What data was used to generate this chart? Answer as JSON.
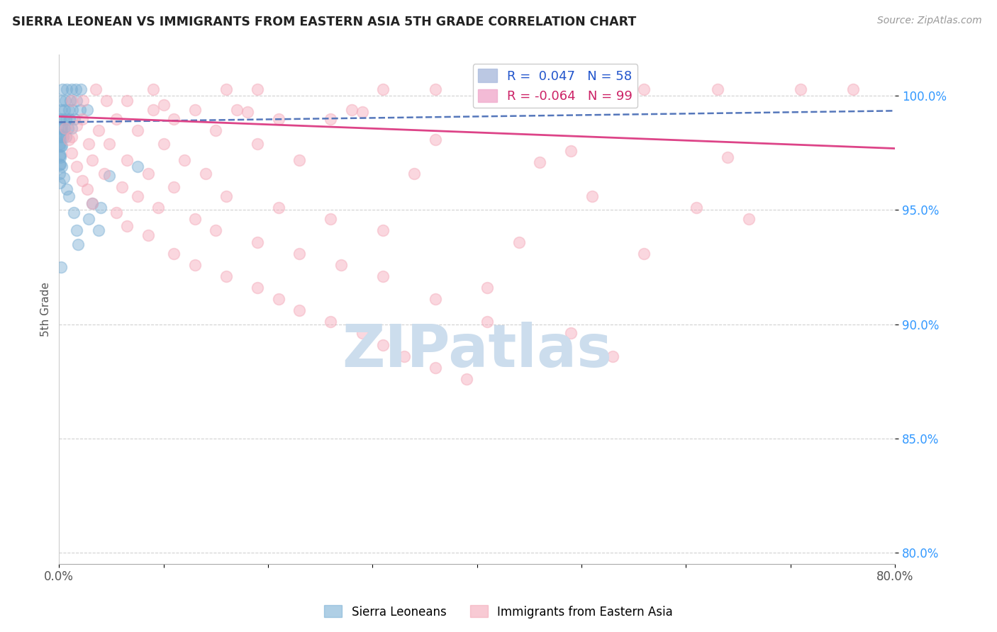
{
  "title": "SIERRA LEONEAN VS IMMIGRANTS FROM EASTERN ASIA 5TH GRADE CORRELATION CHART",
  "source": "Source: ZipAtlas.com",
  "ylabel": "5th Grade",
  "xlim": [
    0.0,
    80.0
  ],
  "ylim": [
    79.5,
    101.8
  ],
  "yticks": [
    80.0,
    85.0,
    90.0,
    95.0,
    100.0
  ],
  "ytick_labels": [
    "80.0%",
    "85.0%",
    "90.0%",
    "95.0%",
    "100.0%"
  ],
  "xticks": [
    0.0,
    10.0,
    20.0,
    30.0,
    40.0,
    50.0,
    60.0,
    70.0,
    80.0
  ],
  "xtick_labels": [
    "0.0%",
    "",
    "",
    "",
    "",
    "",
    "",
    "",
    "80.0%"
  ],
  "blue_R": 0.047,
  "blue_N": 58,
  "pink_R": -0.064,
  "pink_N": 99,
  "blue_color": "#7bafd4",
  "pink_color": "#f4a8b8",
  "trend_blue_color": "#5577bb",
  "trend_pink_color": "#dd4488",
  "watermark": "ZIPatlas",
  "watermark_color": "#ccdded",
  "blue_points": [
    [
      0.3,
      100.3
    ],
    [
      0.7,
      100.3
    ],
    [
      1.2,
      100.3
    ],
    [
      1.6,
      100.3
    ],
    [
      2.1,
      100.3
    ],
    [
      0.2,
      99.8
    ],
    [
      0.6,
      99.8
    ],
    [
      1.1,
      99.8
    ],
    [
      1.7,
      99.8
    ],
    [
      0.15,
      99.4
    ],
    [
      0.5,
      99.4
    ],
    [
      0.9,
      99.4
    ],
    [
      1.3,
      99.4
    ],
    [
      2.0,
      99.4
    ],
    [
      2.7,
      99.4
    ],
    [
      0.1,
      99.0
    ],
    [
      0.35,
      99.0
    ],
    [
      0.65,
      99.0
    ],
    [
      1.0,
      99.0
    ],
    [
      1.5,
      99.0
    ],
    [
      0.1,
      98.6
    ],
    [
      0.25,
      98.6
    ],
    [
      0.55,
      98.6
    ],
    [
      0.85,
      98.6
    ],
    [
      1.2,
      98.6
    ],
    [
      0.08,
      98.2
    ],
    [
      0.18,
      98.2
    ],
    [
      0.38,
      98.2
    ],
    [
      0.65,
      98.2
    ],
    [
      0.05,
      97.8
    ],
    [
      0.15,
      97.8
    ],
    [
      0.28,
      97.8
    ],
    [
      0.05,
      97.4
    ],
    [
      0.12,
      97.4
    ],
    [
      0.04,
      97.0
    ],
    [
      0.09,
      97.0
    ],
    [
      0.03,
      96.6
    ],
    [
      0.03,
      96.2
    ],
    [
      3.2,
      95.3
    ],
    [
      4.0,
      95.1
    ],
    [
      1.8,
      93.5
    ],
    [
      0.15,
      92.5
    ],
    [
      0.08,
      98.3
    ],
    [
      0.04,
      97.9
    ],
    [
      0.12,
      97.3
    ],
    [
      0.25,
      96.9
    ],
    [
      0.45,
      96.4
    ],
    [
      0.75,
      95.9
    ],
    [
      0.9,
      95.6
    ],
    [
      1.4,
      94.9
    ],
    [
      1.7,
      94.1
    ],
    [
      4.8,
      96.5
    ],
    [
      7.5,
      96.9
    ],
    [
      2.8,
      94.6
    ],
    [
      3.8,
      94.1
    ]
  ],
  "pink_points": [
    [
      3.5,
      100.3
    ],
    [
      9.0,
      100.3
    ],
    [
      16.0,
      100.3
    ],
    [
      19.0,
      100.3
    ],
    [
      31.0,
      100.3
    ],
    [
      36.0,
      100.3
    ],
    [
      43.0,
      100.3
    ],
    [
      51.0,
      100.3
    ],
    [
      56.0,
      100.3
    ],
    [
      63.0,
      100.3
    ],
    [
      71.0,
      100.3
    ],
    [
      76.0,
      100.3
    ],
    [
      1.2,
      99.8
    ],
    [
      2.3,
      99.8
    ],
    [
      4.5,
      99.8
    ],
    [
      6.5,
      99.8
    ],
    [
      9.0,
      99.4
    ],
    [
      13.0,
      99.4
    ],
    [
      17.0,
      99.4
    ],
    [
      28.0,
      99.4
    ],
    [
      2.2,
      99.0
    ],
    [
      5.5,
      99.0
    ],
    [
      11.0,
      99.0
    ],
    [
      21.0,
      99.0
    ],
    [
      26.0,
      99.0
    ],
    [
      1.7,
      98.7
    ],
    [
      3.8,
      98.5
    ],
    [
      7.5,
      98.5
    ],
    [
      15.0,
      98.5
    ],
    [
      1.2,
      98.2
    ],
    [
      2.8,
      97.9
    ],
    [
      4.8,
      97.9
    ],
    [
      10.0,
      97.9
    ],
    [
      19.0,
      97.9
    ],
    [
      1.2,
      97.5
    ],
    [
      3.2,
      97.2
    ],
    [
      6.5,
      97.2
    ],
    [
      12.0,
      97.2
    ],
    [
      1.7,
      96.9
    ],
    [
      4.3,
      96.6
    ],
    [
      8.5,
      96.6
    ],
    [
      14.0,
      96.6
    ],
    [
      2.2,
      96.3
    ],
    [
      6.0,
      96.0
    ],
    [
      11.0,
      96.0
    ],
    [
      2.7,
      95.9
    ],
    [
      7.5,
      95.6
    ],
    [
      16.0,
      95.6
    ],
    [
      3.2,
      95.3
    ],
    [
      9.5,
      95.1
    ],
    [
      21.0,
      95.1
    ],
    [
      5.5,
      94.9
    ],
    [
      13.0,
      94.6
    ],
    [
      26.0,
      94.6
    ],
    [
      6.5,
      94.3
    ],
    [
      15.0,
      94.1
    ],
    [
      31.0,
      94.1
    ],
    [
      8.5,
      93.9
    ],
    [
      19.0,
      93.6
    ],
    [
      11.0,
      93.1
    ],
    [
      23.0,
      93.1
    ],
    [
      13.0,
      92.6
    ],
    [
      27.0,
      92.6
    ],
    [
      16.0,
      92.1
    ],
    [
      31.0,
      92.1
    ],
    [
      19.0,
      91.6
    ],
    [
      21.0,
      91.1
    ],
    [
      36.0,
      91.1
    ],
    [
      23.0,
      90.6
    ],
    [
      26.0,
      90.1
    ],
    [
      41.0,
      90.1
    ],
    [
      29.0,
      89.6
    ],
    [
      31.0,
      89.1
    ],
    [
      33.0,
      88.6
    ],
    [
      36.0,
      88.1
    ],
    [
      39.0,
      87.6
    ],
    [
      0.6,
      98.6
    ],
    [
      0.9,
      98.1
    ],
    [
      44.0,
      93.6
    ],
    [
      49.0,
      89.6
    ],
    [
      53.0,
      88.6
    ],
    [
      41.0,
      91.6
    ],
    [
      61.0,
      95.1
    ],
    [
      23.0,
      97.2
    ],
    [
      18.0,
      99.3
    ],
    [
      10.0,
      99.6
    ],
    [
      46.0,
      97.1
    ],
    [
      29.0,
      99.3
    ],
    [
      34.0,
      96.6
    ],
    [
      51.0,
      95.6
    ],
    [
      56.0,
      93.1
    ],
    [
      66.0,
      94.6
    ],
    [
      36.0,
      98.1
    ],
    [
      49.0,
      97.6
    ],
    [
      64.0,
      97.3
    ]
  ],
  "blue_trend_x": [
    0.0,
    80.0
  ],
  "blue_trend_y": [
    98.85,
    99.35
  ],
  "pink_trend_x": [
    0.0,
    80.0
  ],
  "pink_trend_y": [
    99.1,
    97.7
  ]
}
